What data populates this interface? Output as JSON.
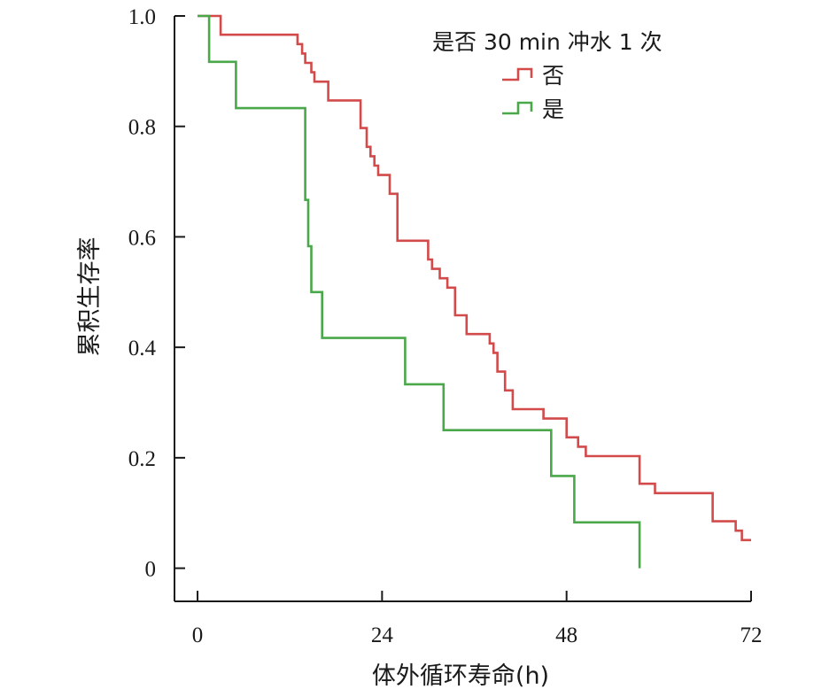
{
  "chart_data": {
    "type": "line",
    "step": true,
    "xlabel": "体外循环寿命(h)",
    "ylabel": "累积生存率",
    "xlim": [
      -3,
      72
    ],
    "ylim": [
      -0.06,
      1.0
    ],
    "xticks": [
      0,
      24,
      48,
      72
    ],
    "xtick_labels": [
      "0",
      "24",
      "48",
      "72"
    ],
    "yticks": [
      0,
      0.2,
      0.4,
      0.6,
      0.8,
      1.0
    ],
    "ytick_labels": [
      "0",
      "0.2",
      "0.4",
      "0.6",
      "0.8",
      "1.0"
    ],
    "grid": false,
    "legend": {
      "title": "是否 30 min 冲水 1 次",
      "position": "top-right"
    },
    "series": [
      {
        "name": "否",
        "color": "#d24a4a",
        "x": [
          0,
          3.0,
          13.0,
          13.6,
          14.0,
          14.8,
          15.2,
          17.0,
          21.2,
          22.0,
          22.5,
          23.0,
          23.5,
          25.0,
          26.0,
          30.0,
          30.5,
          31.5,
          32.5,
          33.5,
          35.0,
          38.0,
          38.5,
          39.0,
          40.0,
          41.0,
          44.0,
          45.0,
          48.0,
          49.5,
          50.5,
          51.5,
          57.5,
          59.5,
          67.0,
          70.0,
          70.8,
          71.5,
          72
        ],
        "y": [
          1.0,
          0.966,
          0.949,
          0.932,
          0.915,
          0.898,
          0.881,
          0.847,
          0.797,
          0.763,
          0.746,
          0.729,
          0.712,
          0.678,
          0.593,
          0.559,
          0.542,
          0.525,
          0.508,
          0.458,
          0.424,
          0.407,
          0.39,
          0.356,
          0.322,
          0.288,
          0.288,
          0.271,
          0.237,
          0.22,
          0.203,
          0.203,
          0.153,
          0.136,
          0.085,
          0.068,
          0.051,
          0.051,
          0.051
        ]
      },
      {
        "name": "是",
        "color": "#4aa84a",
        "x": [
          0,
          1.5,
          5.0,
          14.0,
          14.4,
          14.8,
          16.2,
          16.6,
          27.0,
          32.0,
          46.0,
          49.0,
          57.5
        ],
        "y": [
          1.0,
          0.917,
          0.833,
          0.667,
          0.583,
          0.5,
          0.417,
          0.417,
          0.333,
          0.25,
          0.167,
          0.083,
          0.0
        ]
      }
    ]
  }
}
